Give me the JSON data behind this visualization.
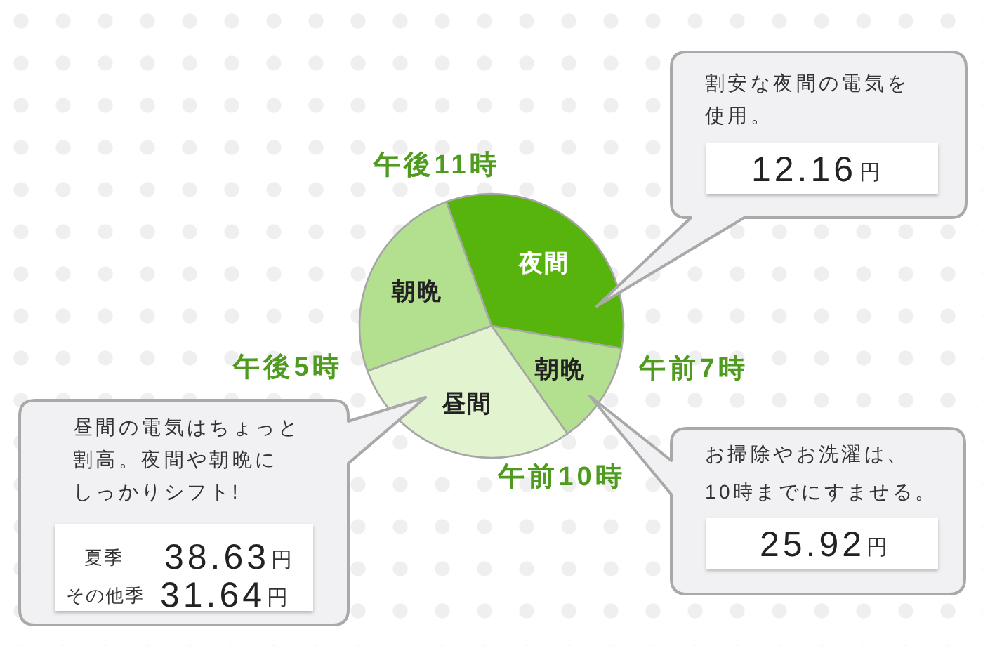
{
  "chart_data": {
    "type": "pie",
    "categories": [
      "夜間",
      "朝晩",
      "昼間",
      "朝晩"
    ],
    "values": [
      33.3,
      12.5,
      29.2,
      25
    ],
    "colors": [
      "#56b40c",
      "#b3e08e",
      "#e2f3d0",
      "#b3e08e"
    ],
    "annotations": [
      "午後11時",
      "午前7時",
      "午前10時",
      "午後5時",
      "割安な夜間の電気を",
      "使用。",
      "12.16",
      "円",
      "お掃除やお洗濯は、",
      "10時までにすませる。",
      "25.92",
      "円",
      "昼間の電気はちょっと",
      "割高。夜間や朝晩に",
      "しっかりシフト!",
      "夏季",
      "38.63",
      "円",
      "その他季",
      "31.64",
      "円"
    ]
  }
}
